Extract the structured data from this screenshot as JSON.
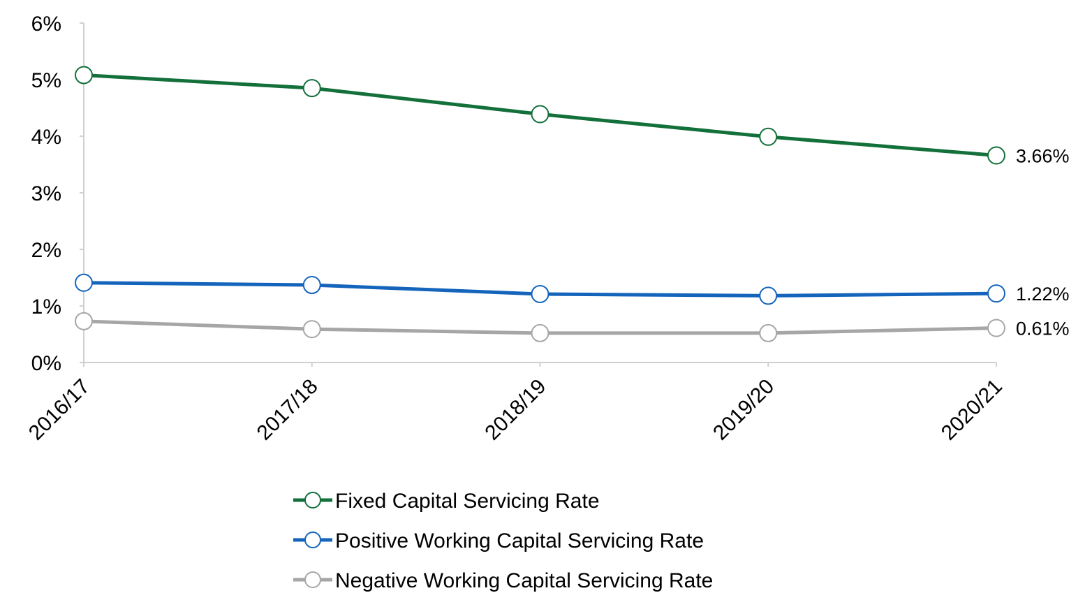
{
  "chart_data": {
    "type": "line",
    "categories": [
      "2016/17",
      "2017/18",
      "2018/19",
      "2019/20",
      "2020/21"
    ],
    "series": [
      {
        "name": "Fixed Capital Servicing Rate",
        "color": "#13703a",
        "values": [
          5.08,
          4.85,
          4.39,
          3.99,
          3.66
        ],
        "value_labels": [
          null,
          null,
          null,
          null,
          "3.66%"
        ]
      },
      {
        "name": "Positive Working Capital Servicing Rate",
        "color": "#1464bc",
        "values": [
          1.41,
          1.37,
          1.21,
          1.18,
          1.22
        ],
        "value_labels": [
          null,
          null,
          null,
          null,
          "1.22%"
        ]
      },
      {
        "name": "Negative Working Capital Servicing Rate",
        "color": "#a6a6a6",
        "values": [
          0.73,
          0.59,
          0.52,
          0.52,
          0.61
        ],
        "value_labels": [
          null,
          null,
          null,
          null,
          "0.61%"
        ]
      }
    ],
    "ylim": [
      0,
      6
    ],
    "yticks": [
      {
        "value": 0,
        "label": "0%"
      },
      {
        "value": 1,
        "label": "1%"
      },
      {
        "value": 2,
        "label": "2%"
      },
      {
        "value": 3,
        "label": "3%"
      },
      {
        "value": 4,
        "label": "4%"
      },
      {
        "value": 5,
        "label": "5%"
      },
      {
        "value": 6,
        "label": "6%"
      }
    ],
    "legend": "bottom"
  }
}
